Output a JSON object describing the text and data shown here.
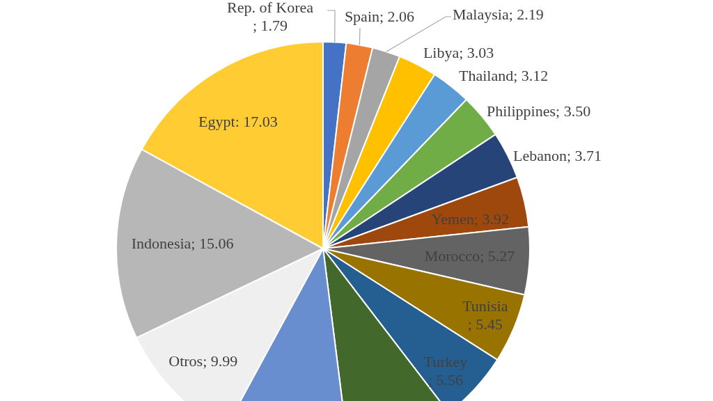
{
  "chart_data": {
    "type": "pie",
    "categories": [
      "Rep. of Korea",
      "Spain",
      "Malaysia",
      "Libya",
      "Thailand",
      "Philippines",
      "Lebanon",
      "Yemen",
      "Morocco",
      "Tunisia",
      "Turkey",
      null,
      null,
      "Otros",
      "Indonesia",
      "Egypt"
    ],
    "values": [
      1.79,
      2.06,
      2.19,
      3.03,
      3.12,
      3.5,
      3.71,
      3.92,
      5.27,
      5.45,
      5.56,
      8.4,
      9.9,
      9.99,
      15.06,
      17.03
    ],
    "colors": [
      "#4472c4",
      "#ed7d31",
      "#a5a5a5",
      "#ffc000",
      "#5b9bd5",
      "#70ad47",
      "#264478",
      "#9e480e",
      "#636363",
      "#997300",
      "#255e91",
      "#43682b",
      "#698ed0",
      "#efefef",
      "#b7b7b7",
      "#ffcd33"
    ],
    "value_labels": [
      "; 1.79",
      "; 2.06",
      "; 2.19",
      "; 3.03",
      "; 3.12",
      "; 3.50",
      "; 3.71",
      "; 3.92",
      "; 5.27",
      "; 5.45",
      "; 5.56",
      null,
      null,
      "; 9.99",
      "; 15.06",
      ": 17.03"
    ]
  }
}
